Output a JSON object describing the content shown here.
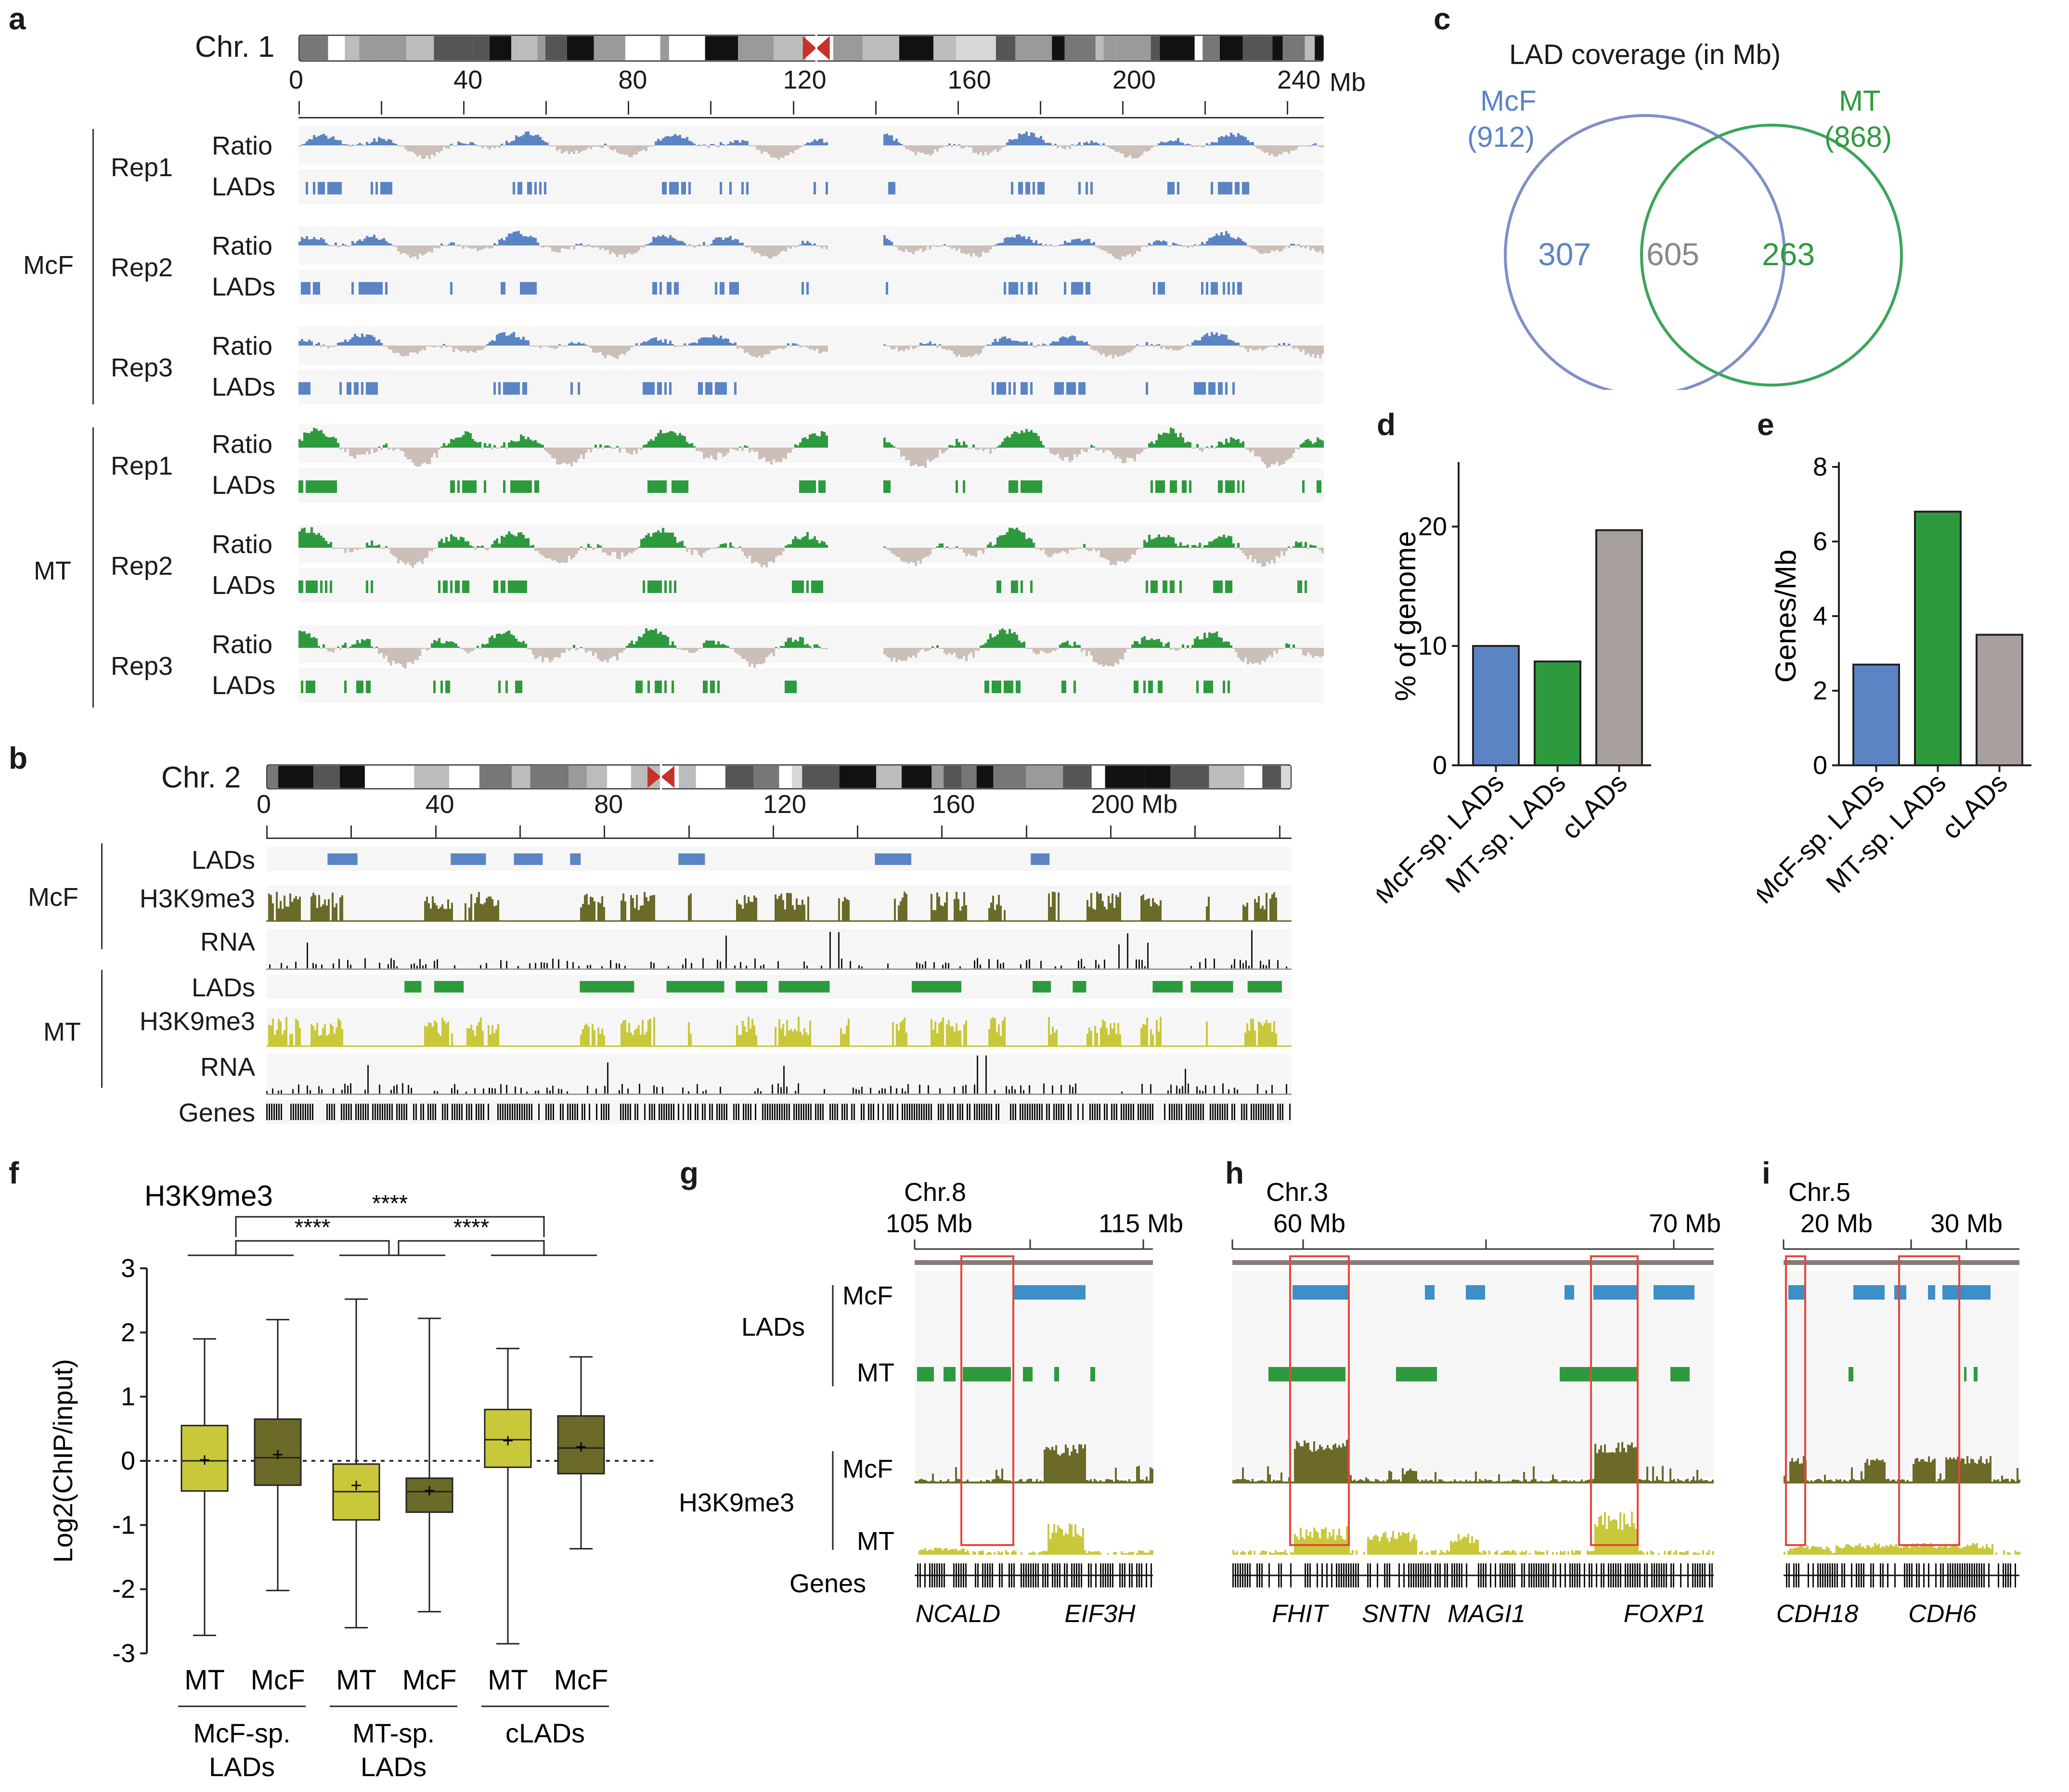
{
  "colors": {
    "mcf": "#5b84c4",
    "mt": "#2e9a3e",
    "gray": "#cbbfb8",
    "h3_mcf": "#6b6a28",
    "h3_mt": "#c9c83a",
    "rna": "#1a1a1a",
    "cLAD": "#a8a09c",
    "venn_mcf": "#7f8fc9",
    "venn_mt": "#3aa55b",
    "red": "#e8453c",
    "lad_blue_g": "#3d8fc8"
  },
  "panel_a": {
    "letter": "a",
    "chrom": "Chr. 1",
    "ticks": [
      "0",
      "40",
      "80",
      "120",
      "160",
      "200",
      "240"
    ],
    "unit": "Mb",
    "groups": [
      {
        "name": "McF",
        "reps": [
          "Rep1",
          "Rep2",
          "Rep3"
        ]
      },
      {
        "name": "MT",
        "reps": [
          "Rep1",
          "Rep2",
          "Rep3"
        ]
      }
    ],
    "track_ratio": "Ratio",
    "track_lads": "LADs"
  },
  "panel_b": {
    "letter": "b",
    "chrom": "Chr. 2",
    "ticks": [
      "0",
      "40",
      "80",
      "120",
      "160"
    ],
    "last_tick": "200 Mb",
    "groups": [
      {
        "name": "McF",
        "tracks": [
          "LADs",
          "H3K9me3",
          "RNA"
        ]
      },
      {
        "name": "MT",
        "tracks": [
          "LADs",
          "H3K9me3",
          "RNA"
        ]
      }
    ],
    "genes": "Genes"
  },
  "panel_c": {
    "letter": "c",
    "title": "LAD coverage (in Mb)",
    "left_name": "McF",
    "left_total": "(912)",
    "right_name": "MT",
    "right_total": "(868)",
    "left_only": "307",
    "overlap": "605",
    "right_only": "263"
  },
  "panel_d": {
    "letter": "d",
    "chart_data": {
      "type": "bar",
      "categories": [
        "McF-sp. LADs",
        "MT-sp. LADs",
        "cLADs"
      ],
      "values": [
        10,
        8.7,
        19.7
      ],
      "ylabel": "% of genome",
      "ylim": [
        0,
        25
      ],
      "yticks": [
        "0",
        "10",
        "20"
      ]
    }
  },
  "panel_e": {
    "letter": "e",
    "chart_data": {
      "type": "bar",
      "categories": [
        "McF-sp. LADs",
        "MT-sp. LADs",
        "cLADs"
      ],
      "values": [
        2.7,
        6.8,
        3.5
      ],
      "ylabel": "Genes/Mb",
      "ylim": [
        0,
        8
      ],
      "yticks": [
        "0",
        "2",
        "4",
        "6",
        "8"
      ]
    }
  },
  "panel_f": {
    "letter": "f",
    "title": "H3K9me3",
    "ylabel": "Log2(ChIP/input)",
    "yticks": [
      "3",
      "2",
      "1",
      "0",
      "-1",
      "-2",
      "-3"
    ],
    "sig": "****",
    "chart_data": {
      "type": "box",
      "boxes": [
        {
          "label": "MT",
          "group": "McF-sp. LADs",
          "min": -2.72,
          "q1": -0.47,
          "median": 0.0,
          "q3": 0.55,
          "max": 1.9,
          "mean": 0.02
        },
        {
          "label": "McF",
          "group": "McF-sp. LADs",
          "min": -2.02,
          "q1": -0.38,
          "median": 0.05,
          "q3": 0.65,
          "max": 2.2,
          "mean": 0.1
        },
        {
          "label": "MT",
          "group": "MT-sp. LADs",
          "min": -2.6,
          "q1": -0.92,
          "median": -0.48,
          "q3": -0.05,
          "max": 2.52,
          "mean": -0.38
        },
        {
          "label": "McF",
          "group": "MT-sp. LADs",
          "min": -2.35,
          "q1": -0.8,
          "median": -0.48,
          "q3": -0.27,
          "max": 2.22,
          "mean": -0.46
        },
        {
          "label": "MT",
          "group": "cLADs",
          "min": -2.85,
          "q1": -0.1,
          "median": 0.33,
          "q3": 0.8,
          "max": 1.75,
          "mean": 0.32
        },
        {
          "label": "McF",
          "group": "cLADs",
          "min": -1.37,
          "q1": -0.2,
          "median": 0.2,
          "q3": 0.7,
          "max": 1.62,
          "mean": 0.22
        }
      ],
      "ylim": [
        -3,
        3
      ]
    },
    "groups": [
      {
        "line1": "McF-sp.",
        "line2": "LADs"
      },
      {
        "line1": "MT-sp.",
        "line2": "LADs"
      },
      {
        "line1": "cLADs",
        "line2": ""
      }
    ]
  },
  "panel_g": {
    "letter": "g",
    "chrom": "Chr.8",
    "tick_left": "105 Mb",
    "tick_right": "115 Mb",
    "lads": "LADs",
    "h3": "H3K9me3",
    "mcf": "McF",
    "mt": "MT",
    "genes": "Genes",
    "gene_names": [
      "NCALD",
      "EIF3H"
    ]
  },
  "panel_h": {
    "letter": "h",
    "chrom": "Chr.3",
    "tick_left": "60 Mb",
    "tick_right": "70 Mb",
    "gene_names": [
      "FHIT",
      "SNTN",
      "MAGI1",
      "FOXP1"
    ]
  },
  "panel_i": {
    "letter": "i",
    "chrom": "Chr.5",
    "tick_left": "20 Mb",
    "tick_right": "30 Mb",
    "gene_names": [
      "CDH18",
      "CDH6"
    ]
  }
}
